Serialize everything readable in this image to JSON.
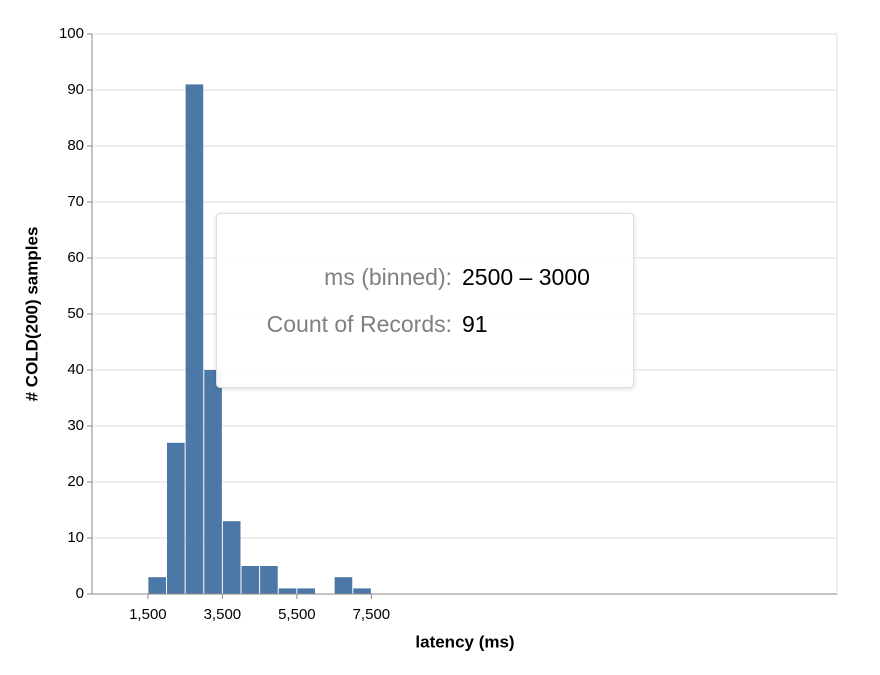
{
  "chart_data": {
    "type": "histogram",
    "x_label": "latency (ms)",
    "y_label": "# COLD(200) samples",
    "bins": [
      1500,
      2000,
      2500,
      3000,
      3500,
      4000,
      4500,
      5000,
      5500,
      6000,
      6500,
      7000,
      7500
    ],
    "values": [
      3,
      27,
      91,
      40,
      13,
      5,
      5,
      1,
      1,
      0,
      3,
      1
    ],
    "color": "#4c78a8",
    "xlim": [
      0,
      20000
    ],
    "xticks": [
      {
        "value": 1500,
        "label": "1,500"
      },
      {
        "value": 3500,
        "label": "3,500"
      },
      {
        "value": 5500,
        "label": "5,500"
      },
      {
        "value": 7500,
        "label": "7,500"
      }
    ],
    "ylim": [
      0,
      100
    ],
    "yticks": [
      0,
      10,
      20,
      30,
      40,
      50,
      60,
      70,
      80,
      90,
      100
    ],
    "grid": "y",
    "tooltip": {
      "rows": [
        {
          "label": "ms (binned):",
          "value": "2500 – 3000"
        },
        {
          "label": "Count of Records:",
          "value": 91
        }
      ]
    }
  }
}
